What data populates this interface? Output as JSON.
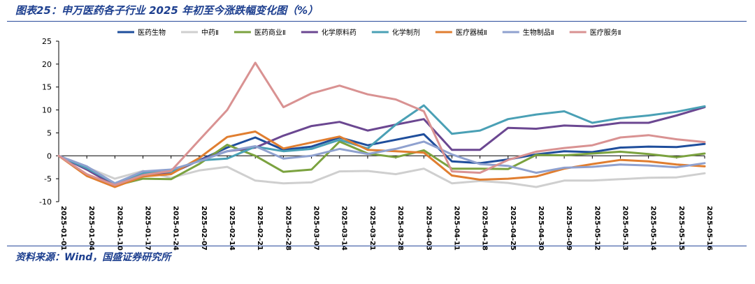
{
  "figure": {
    "title": "图表25：申万医药各子行业 2025 年初至今涨跌幅变化图（%）",
    "source": "资料来源：Wind，国盛证券研究所"
  },
  "chart_data": {
    "type": "line",
    "title": "图表25：申万医药各子行业 2025 年初至今涨跌幅变化图（%）",
    "xlabel": "",
    "ylabel": "",
    "ylim": [
      -10,
      25
    ],
    "yticks": [
      -10,
      -5,
      0,
      5,
      10,
      15,
      20,
      25
    ],
    "grid": false,
    "legend_position": "top",
    "categories": [
      "2025-01-01",
      "2025-01-04",
      "2025-01-10",
      "2025-01-17",
      "2025-01-24",
      "2025-02-07",
      "2025-02-14",
      "2025-02-21",
      "2025-02-28",
      "2025-03-07",
      "2025-03-14",
      "2025-03-21",
      "2025-03-28",
      "2025-04-03",
      "2025-04-11",
      "2025-04-18",
      "2025-04-25",
      "2025-04-30",
      "2025-05-09",
      "2025-05-12",
      "2025-05-13",
      "2025-05-14",
      "2025-05-15",
      "2025-05-16"
    ],
    "series": [
      {
        "name": "医药生物",
        "color": "#1f4e9c",
        "values": [
          0,
          -2.8,
          -6.2,
          -4.0,
          -3.5,
          -1.0,
          1.8,
          4.0,
          1.3,
          2.0,
          4.0,
          2.3,
          3.5,
          4.7,
          -1.2,
          -1.6,
          -0.8,
          0.3,
          1.0,
          0.8,
          1.8,
          2.0,
          1.9,
          2.6
        ]
      },
      {
        "name": "中药Ⅱ",
        "color": "#cfcfcf",
        "values": [
          0,
          -2.5,
          -5.0,
          -3.3,
          -4.8,
          -3.2,
          -2.4,
          -5.4,
          -6.0,
          -5.8,
          -3.4,
          -3.3,
          -4.0,
          -2.8,
          -6.0,
          -5.5,
          -5.9,
          -6.8,
          -5.4,
          -5.4,
          -5.1,
          -4.8,
          -4.7,
          -3.8
        ]
      },
      {
        "name": "医药商业Ⅱ",
        "color": "#7ba23f",
        "values": [
          0,
          -4.2,
          -6.5,
          -5.0,
          -5.1,
          -1.8,
          2.4,
          0.0,
          -3.5,
          -3.0,
          3.1,
          0.5,
          -0.3,
          1.2,
          -2.8,
          -2.8,
          -2.9,
          0.2,
          0.1,
          0.5,
          0.9,
          0.4,
          -0.3,
          0.5
        ]
      },
      {
        "name": "化学原料药",
        "color": "#6b4791",
        "values": [
          0,
          -3.0,
          -6.5,
          -4.2,
          -3.8,
          -1.0,
          1.0,
          1.8,
          4.4,
          6.5,
          7.4,
          5.5,
          6.8,
          8.0,
          1.3,
          1.3,
          6.1,
          5.9,
          6.6,
          6.4,
          7.2,
          7.2,
          8.8,
          10.6
        ]
      },
      {
        "name": "化学制剂",
        "color": "#4aa0b5",
        "values": [
          0,
          -2.7,
          -6.0,
          -3.7,
          -3.5,
          -1.0,
          -0.6,
          2.0,
          1.0,
          1.5,
          3.5,
          1.6,
          6.8,
          11.0,
          4.8,
          5.5,
          8.0,
          9.0,
          9.7,
          7.2,
          8.2,
          8.8,
          9.6,
          10.8
        ]
      },
      {
        "name": "医疗器械Ⅱ",
        "color": "#e07e30",
        "values": [
          0,
          -4.4,
          -6.8,
          -4.5,
          -4.0,
          -0.5,
          4.1,
          5.3,
          1.6,
          2.9,
          4.2,
          1.3,
          1.0,
          0.7,
          -4.3,
          -5.2,
          -5.0,
          -4.5,
          -2.8,
          -1.8,
          -0.9,
          -1.2,
          -1.9,
          -2.3
        ]
      },
      {
        "name": "生物制品Ⅱ",
        "color": "#8fa1cf",
        "values": [
          0,
          -2.3,
          -6.0,
          -3.4,
          -3.0,
          -1.2,
          1.0,
          2.1,
          -0.6,
          0.0,
          1.5,
          0.4,
          1.5,
          3.1,
          0.3,
          -1.8,
          -2.2,
          -3.7,
          -2.6,
          -2.4,
          -1.9,
          -2.1,
          -2.5,
          -1.6
        ]
      },
      {
        "name": "医疗服务Ⅱ",
        "color": "#d99292",
        "values": [
          0,
          -4.0,
          -6.4,
          -4.2,
          -3.3,
          3.4,
          10.0,
          20.3,
          10.6,
          13.6,
          15.3,
          13.4,
          12.3,
          9.7,
          -3.4,
          -3.7,
          -0.9,
          0.9,
          1.7,
          2.3,
          4.0,
          4.5,
          3.6,
          3.0
        ]
      }
    ]
  }
}
